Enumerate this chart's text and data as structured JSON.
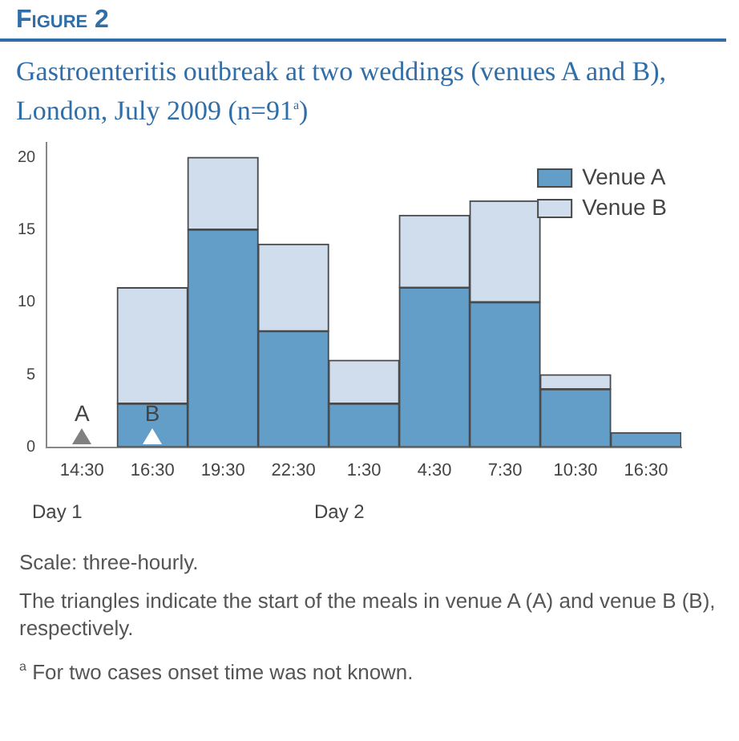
{
  "chart_data": {
    "type": "bar",
    "stacked": true,
    "title": "Gastroenteritis outbreak at two weddings (venues A and B), London, July 2009 (n=91$^{a}$)",
    "categories": [
      "14:30",
      "16:30",
      "19:30",
      "22:30",
      "1:30",
      "4:30",
      "7:30",
      "10:30",
      "16:30"
    ],
    "series": [
      {
        "name": "Venue A",
        "color": "#639ec9",
        "values": [
          0,
          3,
          15,
          8,
          3,
          11,
          10,
          4,
          1
        ]
      },
      {
        "name": "Venue B",
        "color": "#d0ddec",
        "values": [
          0,
          8,
          5,
          6,
          3,
          5,
          7,
          1,
          0
        ]
      }
    ],
    "ylim": [
      0,
      21
    ],
    "yticks": [
      0,
      5,
      10,
      15,
      20
    ],
    "grid": false,
    "legend": "top right",
    "annotations": [
      "Figure 2",
      {
        "text": "A",
        "x": "14:30",
        "y": 0
      },
      {
        "text": "B",
        "x": "16:30",
        "y": 0
      },
      "Day 1",
      "Day 2",
      "Scale: three-hourly.",
      "The triangles indicate the start of the meals in venue A (A) and venue B (B), respectively.",
      "$^{a}$ For two cases onset time was not known."
    ]
  }
}
